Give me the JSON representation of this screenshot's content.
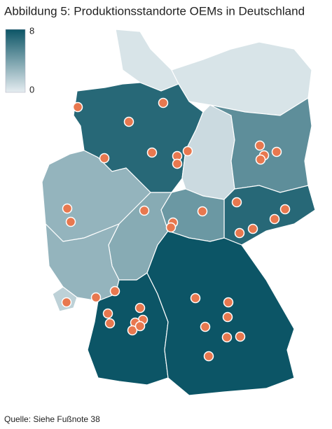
{
  "title": "Abbildung 5: Produktionsstandorte OEMs in Deutschland",
  "legend": {
    "max": 8,
    "min": 0,
    "color_max": "#0c5566",
    "color_min": "#e6edf1"
  },
  "regions": [
    0.5,
    0.5,
    7,
    1,
    5,
    7,
    3,
    4.5,
    3.5,
    3,
    1.5,
    8,
    8
  ],
  "source": "Quelle: Siehe Fußnote 38"
}
